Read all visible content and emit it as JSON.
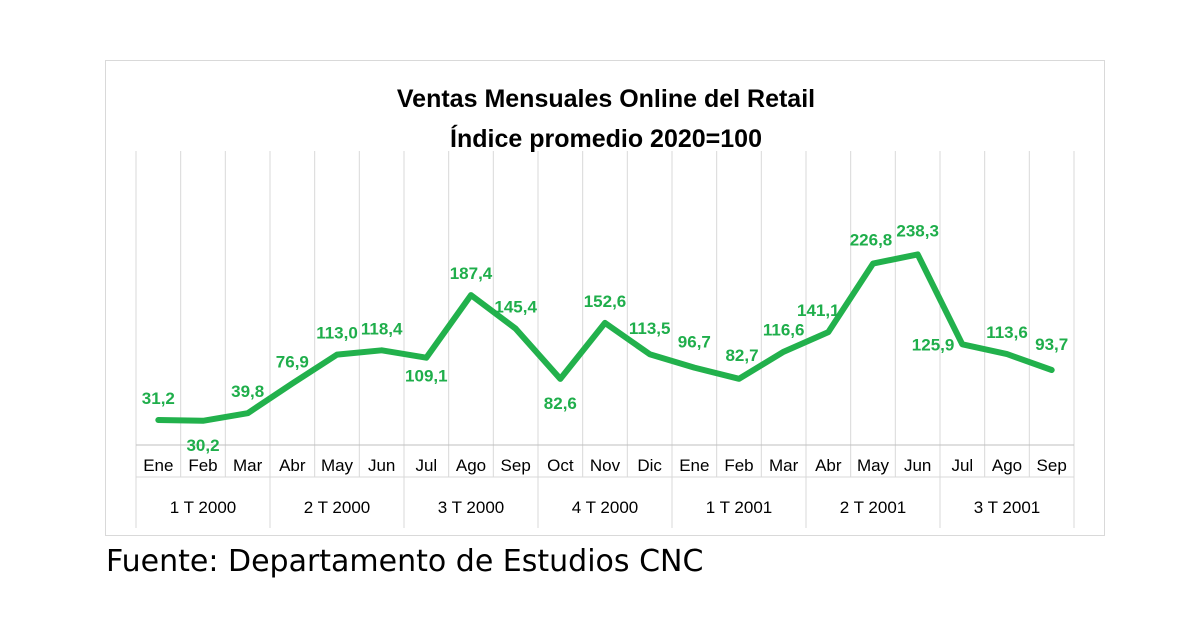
{
  "chart_data": {
    "type": "line",
    "title": "Ventas Mensuales Online del Retail",
    "subtitle": "Índice promedio 2020=100",
    "categories": [
      "Ene",
      "Feb",
      "Mar",
      "Abr",
      "May",
      "Jun",
      "Jul",
      "Ago",
      "Sep",
      "Oct",
      "Nov",
      "Dic",
      "Ene",
      "Feb",
      "Mar",
      "Abr",
      "May",
      "Jun",
      "Jul",
      "Ago",
      "Sep"
    ],
    "groups": [
      {
        "label": "1 T 2000",
        "count": 3
      },
      {
        "label": "2 T 2000",
        "count": 3
      },
      {
        "label": "3 T 2000",
        "count": 3
      },
      {
        "label": "4 T 2000",
        "count": 3
      },
      {
        "label": "1 T 2001",
        "count": 3
      },
      {
        "label": "2 T 2001",
        "count": 3
      },
      {
        "label": "3 T 2001",
        "count": 3
      }
    ],
    "series": [
      {
        "values": [
          31.2,
          30.2,
          39.8,
          76.9,
          113.0,
          118.4,
          109.1,
          187.4,
          145.4,
          82.6,
          152.6,
          113.5,
          96.7,
          82.7,
          116.6,
          141.1,
          226.8,
          238.3,
          125.9,
          113.6,
          93.7
        ],
        "labels": [
          "31,2",
          "30,2",
          "39,8",
          "76,9",
          "113,0",
          "118,4",
          "109,1",
          "187,4",
          "145,4",
          "82,6",
          "152,6",
          "113,5",
          "96,7",
          "82,7",
          "116,6",
          "141,1",
          "226,8",
          "238,3",
          "125,9",
          "113,6",
          "93,7"
        ],
        "color": "#22b14c"
      }
    ],
    "ylim": [
      0,
      280
    ],
    "grid": "vertical",
    "legend": "none"
  },
  "source": "Fuente: Departamento de Estudios CNC"
}
